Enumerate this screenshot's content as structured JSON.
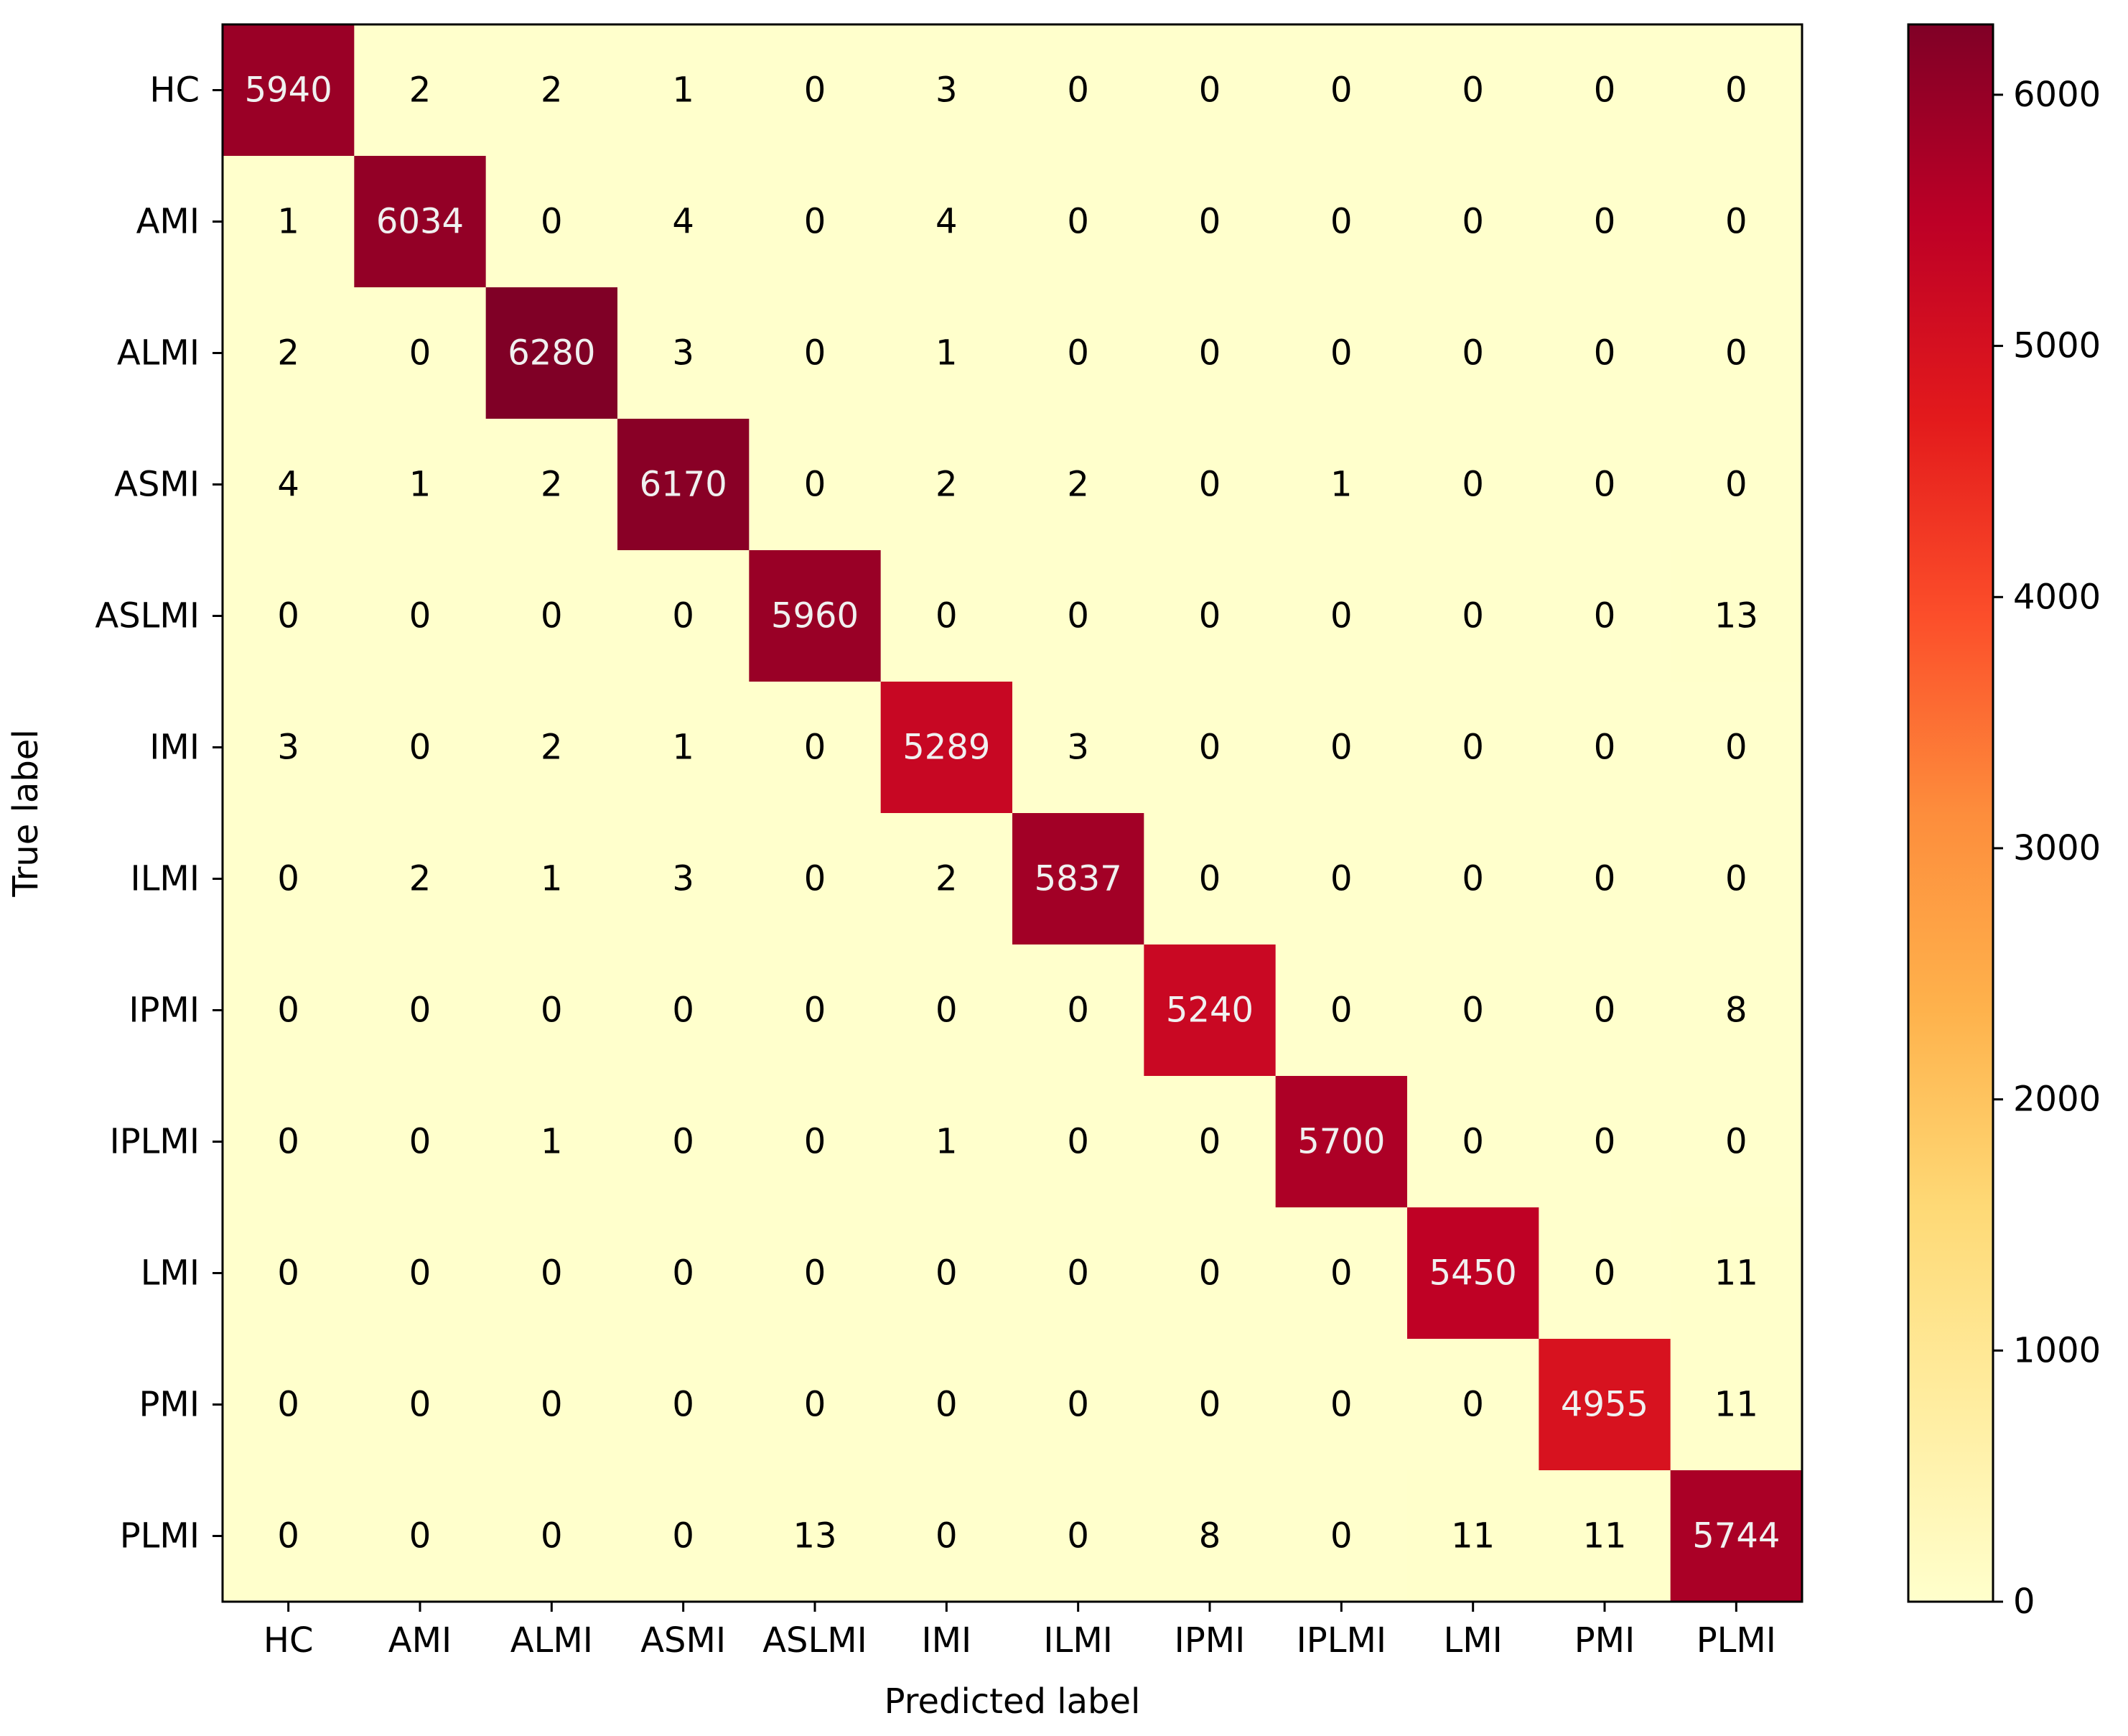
{
  "chart_data": {
    "type": "heatmap",
    "title": "",
    "xlabel": "Predicted label",
    "ylabel": "True label",
    "labels": [
      "HC",
      "AMI",
      "ALMI",
      "ASMI",
      "ASLMI",
      "IMI",
      "ILMI",
      "IPMI",
      "IPLMI",
      "LMI",
      "PMI",
      "PLMI"
    ],
    "matrix": [
      [
        5940,
        2,
        2,
        1,
        0,
        3,
        0,
        0,
        0,
        0,
        0,
        0
      ],
      [
        1,
        6034,
        0,
        4,
        0,
        4,
        0,
        0,
        0,
        0,
        0,
        0
      ],
      [
        2,
        0,
        6280,
        3,
        0,
        1,
        0,
        0,
        0,
        0,
        0,
        0
      ],
      [
        4,
        1,
        2,
        6170,
        0,
        2,
        2,
        0,
        1,
        0,
        0,
        0
      ],
      [
        0,
        0,
        0,
        0,
        5960,
        0,
        0,
        0,
        0,
        0,
        0,
        13
      ],
      [
        3,
        0,
        2,
        1,
        0,
        5289,
        3,
        0,
        0,
        0,
        0,
        0
      ],
      [
        0,
        2,
        1,
        3,
        0,
        2,
        5837,
        0,
        0,
        0,
        0,
        0
      ],
      [
        0,
        0,
        0,
        0,
        0,
        0,
        0,
        5240,
        0,
        0,
        0,
        8
      ],
      [
        0,
        0,
        1,
        0,
        0,
        1,
        0,
        0,
        5700,
        0,
        0,
        0
      ],
      [
        0,
        0,
        0,
        0,
        0,
        0,
        0,
        0,
        0,
        5450,
        0,
        11
      ],
      [
        0,
        0,
        0,
        0,
        0,
        0,
        0,
        0,
        0,
        0,
        4955,
        11
      ],
      [
        0,
        0,
        0,
        0,
        13,
        0,
        0,
        8,
        0,
        11,
        11,
        5744
      ]
    ],
    "colormap": "YlOrRd",
    "colorbar": {
      "range": [
        0,
        6280
      ],
      "ticks": [
        0,
        1000,
        2000,
        3000,
        4000,
        5000,
        6000
      ]
    },
    "grid": false,
    "legend": "none"
  }
}
